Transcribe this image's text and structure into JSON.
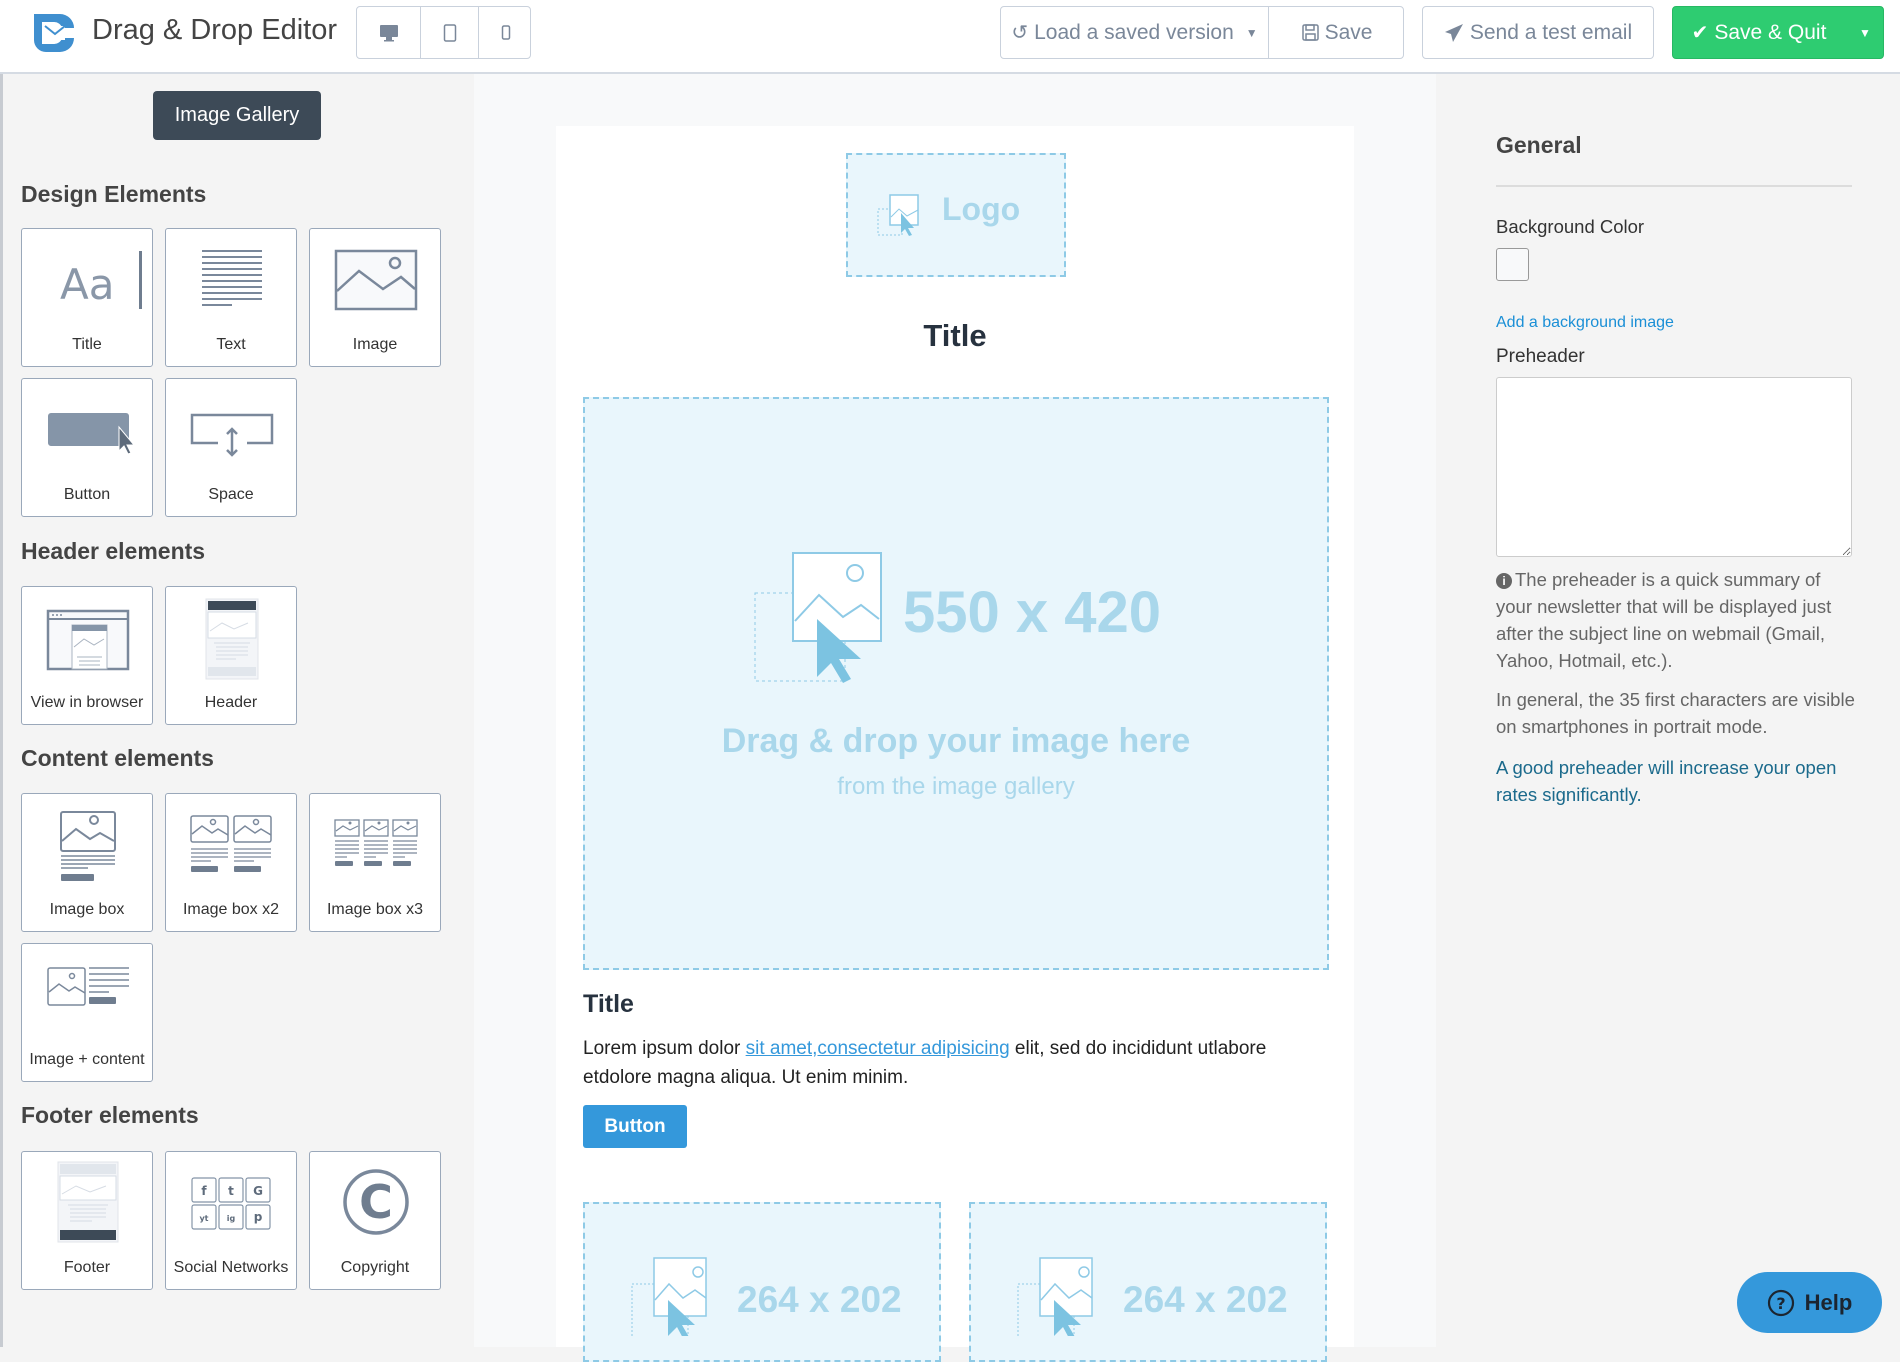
{
  "header": {
    "app_title": "Drag & Drop Editor",
    "devices": [
      "desktop-icon",
      "tablet-icon",
      "mobile-icon"
    ],
    "load_version_label": "Load a saved version",
    "save_label": "Save",
    "send_test_label": "Send a test email",
    "save_quit_label": "Save & Quit"
  },
  "sidebar": {
    "gallery_button": "Image Gallery",
    "sections": [
      {
        "title": "Design Elements",
        "items": [
          {
            "label": "Title"
          },
          {
            "label": "Text"
          },
          {
            "label": "Image"
          },
          {
            "label": "Button"
          },
          {
            "label": "Space"
          }
        ]
      },
      {
        "title": "Header elements",
        "items": [
          {
            "label": "View in browser"
          },
          {
            "label": "Header"
          }
        ]
      },
      {
        "title": "Content elements",
        "items": [
          {
            "label": "Image box"
          },
          {
            "label": "Image box x2"
          },
          {
            "label": "Image box x3"
          },
          {
            "label": "Image + content"
          }
        ]
      },
      {
        "title": "Footer elements",
        "items": [
          {
            "label": "Footer"
          },
          {
            "label": "Social Networks"
          },
          {
            "label": "Copyright"
          }
        ]
      }
    ],
    "icon_text": {
      "title_glyph": "Aa",
      "copyright_glyph": "C",
      "social": [
        "f",
        "t",
        "G",
        "yt",
        "ig",
        "p"
      ]
    }
  },
  "email": {
    "logo_placeholder": "Logo",
    "title": "Title",
    "main_image": {
      "size": "550 x 420",
      "drop_text": "Drag & drop your image here",
      "sub_text": "from the image gallery"
    },
    "section_title": "Title",
    "paragraph": {
      "before": "Lorem ipsum dolor ",
      "link": "sit amet,consectetur adipisicing",
      "after": " elit, sed do incididunt utlabore etdolore magna aliqua. Ut enim minim."
    },
    "button_label": "Button",
    "image_boxes": [
      {
        "size": "264 x 202"
      },
      {
        "size": "264 x 202"
      }
    ]
  },
  "settings": {
    "heading": "General",
    "bg_color_label": "Background Color",
    "bg_color_value": "#f8f9fa",
    "add_bg_image": "Add a background image",
    "preheader_label": "Preheader",
    "preheader_value": "",
    "info_text": "The preheader is a quick summary of your newsletter that will be displayed just after the subject line on webmail (Gmail, Yahoo, Hotmail, etc.).",
    "general_text": "In general, the 35 first characters are visible on smartphones in portrait mode.",
    "tip_text": "A good preheader will increase your open rates significantly."
  },
  "help_label": "Help",
  "colors": {
    "accent": "#3498db",
    "success": "#2ecc71",
    "dark": "#3d4a57",
    "placeholder": "#a9d7eb"
  }
}
